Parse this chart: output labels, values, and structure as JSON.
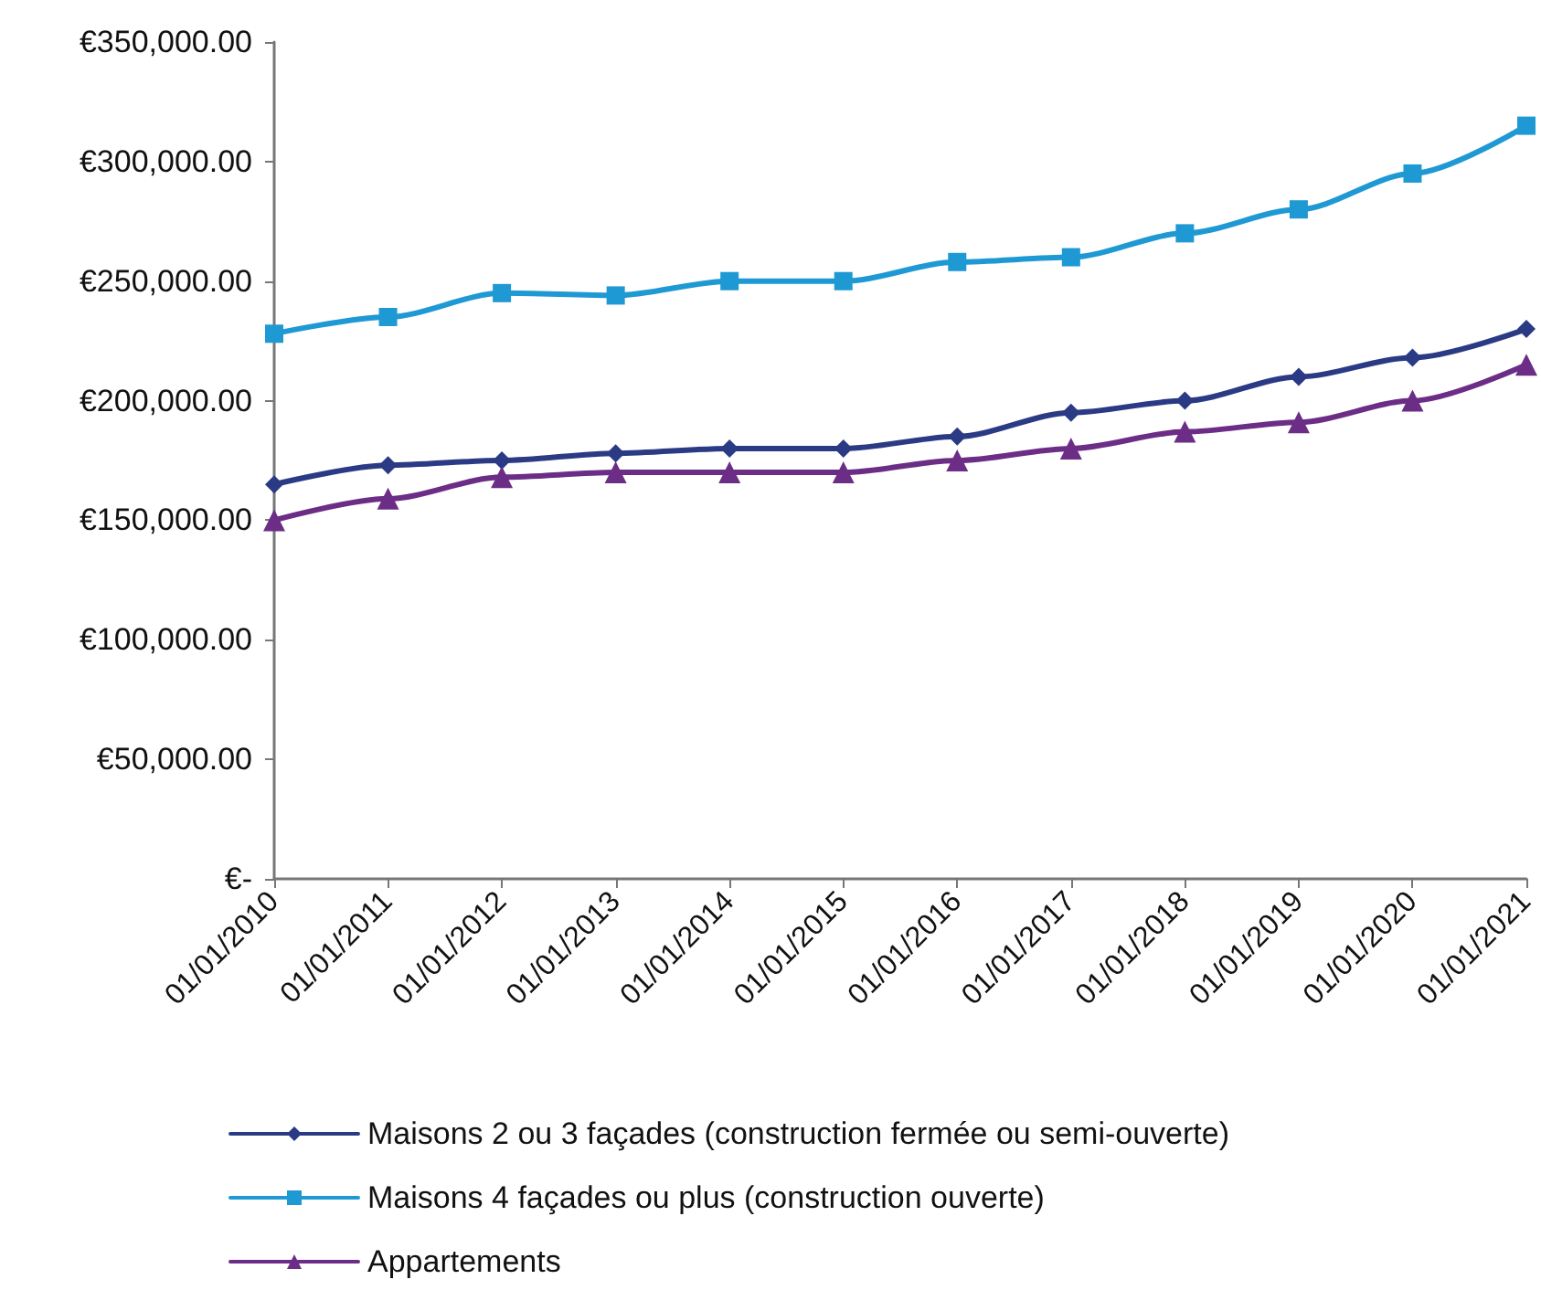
{
  "chart_data": {
    "type": "line",
    "categories": [
      "01/01/2010",
      "01/01/2011",
      "01/01/2012",
      "01/01/2013",
      "01/01/2014",
      "01/01/2015",
      "01/01/2016",
      "01/01/2017",
      "01/01/2018",
      "01/01/2019",
      "01/01/2020",
      "01/01/2021"
    ],
    "series": [
      {
        "name": "Maisons 2 ou 3 façades (construction fermée ou semi-ouverte)",
        "color": "#2b3a84",
        "marker": "diamond",
        "values": [
          165000,
          173000,
          175000,
          178000,
          180000,
          180000,
          185000,
          195000,
          200000,
          210000,
          218000,
          230000
        ]
      },
      {
        "name": "Maisons 4 façades ou plus (construction ouverte)",
        "color": "#1f99d3",
        "marker": "square",
        "values": [
          228000,
          235000,
          245000,
          244000,
          250000,
          250000,
          258000,
          260000,
          270000,
          280000,
          295000,
          315000
        ]
      },
      {
        "name": "Appartements",
        "color": "#6b2d86",
        "marker": "triangle",
        "values": [
          150000,
          159000,
          168000,
          170000,
          170000,
          170000,
          175000,
          180000,
          187000,
          191000,
          200000,
          215000
        ]
      }
    ],
    "ylim": [
      0,
      350000
    ],
    "yticks": [
      {
        "value": 0,
        "label": "€-"
      },
      {
        "value": 50000,
        "label": "€50,000.00"
      },
      {
        "value": 100000,
        "label": "€100,000.00"
      },
      {
        "value": 150000,
        "label": "€150,000.00"
      },
      {
        "value": 200000,
        "label": "€200,000.00"
      },
      {
        "value": 250000,
        "label": "€250,000.00"
      },
      {
        "value": 300000,
        "label": "€300,000.00"
      },
      {
        "value": 350000,
        "label": "€350,000.00"
      }
    ],
    "grid": false,
    "legend": "bottom",
    "line_style": "solid"
  }
}
